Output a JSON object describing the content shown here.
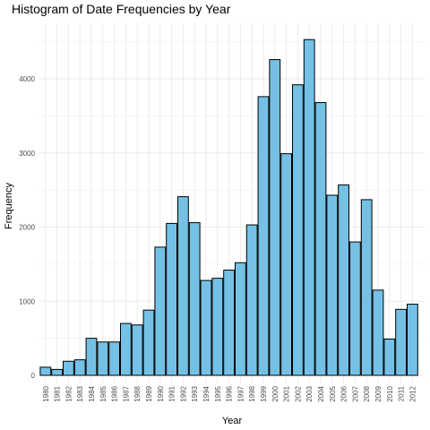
{
  "chart_data": {
    "type": "bar",
    "title": "Histogram of Date Frequencies by Year",
    "xlabel": "Year",
    "ylabel": "Frequency",
    "categories": [
      "1980",
      "1981",
      "1982",
      "1983",
      "1984",
      "1985",
      "1986",
      "1987",
      "1988",
      "1989",
      "1990",
      "1991",
      "1992",
      "1993",
      "1994",
      "1995",
      "1996",
      "1997",
      "1998",
      "1999",
      "2000",
      "2001",
      "2002",
      "2003",
      "2004",
      "2005",
      "2006",
      "2007",
      "2008",
      "2009",
      "2010",
      "2011",
      "2012"
    ],
    "values": [
      110,
      80,
      190,
      210,
      500,
      450,
      450,
      700,
      680,
      880,
      1730,
      2050,
      2410,
      2060,
      1280,
      1310,
      1420,
      1520,
      2030,
      3760,
      4260,
      2990,
      3920,
      4530,
      3680,
      2430,
      2570,
      1800,
      2370,
      1150,
      490,
      890,
      960
    ],
    "ylim": [
      0,
      4750
    ],
    "yticks": [
      0,
      1000,
      2000,
      3000,
      4000
    ],
    "bar_fill": "#74c1e5",
    "bar_stroke": "#000000",
    "grid": true,
    "grid_color": "#ebebeb",
    "legend": "none"
  }
}
